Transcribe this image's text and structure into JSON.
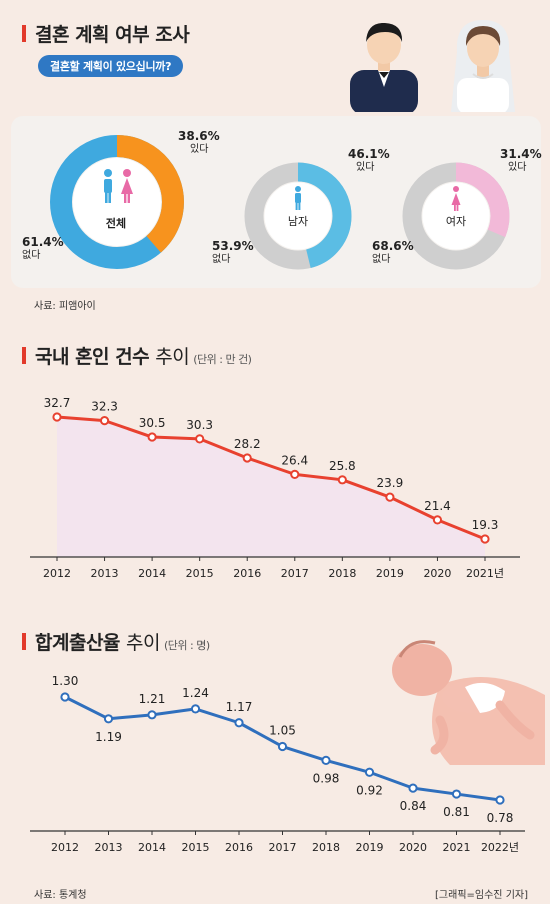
{
  "survey": {
    "title": "결혼 계획 여부 조사",
    "question": "결혼할 계획이 있으십니까?",
    "source": "사료: 피앰아이",
    "donuts": [
      {
        "label": "전체",
        "yes_pct": "38.6%",
        "yes_label": "있다",
        "no_pct": "61.4%",
        "no_label": "없다",
        "yes_value": 38.6,
        "yes_color": "#f7931e",
        "no_color": "#3fa9df"
      },
      {
        "label": "남자",
        "yes_pct": "46.1%",
        "yes_label": "있다",
        "no_pct": "53.9%",
        "no_label": "없다",
        "yes_value": 46.1,
        "yes_color": "#5bbde4",
        "no_color": "#cfcfcf"
      },
      {
        "label": "여자",
        "yes_pct": "31.4%",
        "yes_label": "있다",
        "no_pct": "68.6%",
        "no_label": "없다",
        "yes_value": 31.4,
        "yes_color": "#f2b9d8",
        "no_color": "#cfcfcf"
      }
    ]
  },
  "marriage": {
    "title_bold": "국내 혼인 건수",
    "title_light": "추이",
    "unit": "(단위 : 만 건)"
  },
  "fertility": {
    "title_bold": "합계출산율",
    "title_light": "추이",
    "unit": "(단위 : 명)",
    "source": "사료: 통계청",
    "credit": "[그래픽=임수진 기자]"
  },
  "chart_data": [
    {
      "type": "area",
      "title": "국내 혼인 건수 추이",
      "categories": [
        "2012",
        "2013",
        "2014",
        "2015",
        "2016",
        "2017",
        "2018",
        "2019",
        "2020",
        "2021년"
      ],
      "values": [
        32.7,
        32.3,
        30.5,
        30.3,
        28.2,
        26.4,
        25.8,
        23.9,
        21.4,
        19.3
      ],
      "value_labels": [
        "32.7",
        "32.3",
        "30.5",
        "30.3",
        "28.2",
        "26.4",
        "25.8",
        "23.9",
        "21.4",
        "19.3"
      ],
      "color": "#e8412f",
      "fill": "#f3e4ee"
    },
    {
      "type": "line",
      "title": "합계출산율 추이",
      "categories": [
        "2012",
        "2013",
        "2014",
        "2015",
        "2016",
        "2017",
        "2018",
        "2019",
        "2020",
        "2021",
        "2022년"
      ],
      "values": [
        1.3,
        1.19,
        1.21,
        1.24,
        1.17,
        1.05,
        0.98,
        0.92,
        0.84,
        0.81,
        0.78
      ],
      "value_labels": [
        "1.30",
        "1.19",
        "1.21",
        "1.24",
        "1.17",
        "1.05",
        "0.98",
        "0.92",
        "0.84",
        "0.81",
        "0.78"
      ],
      "color": "#2f6fbd"
    }
  ]
}
